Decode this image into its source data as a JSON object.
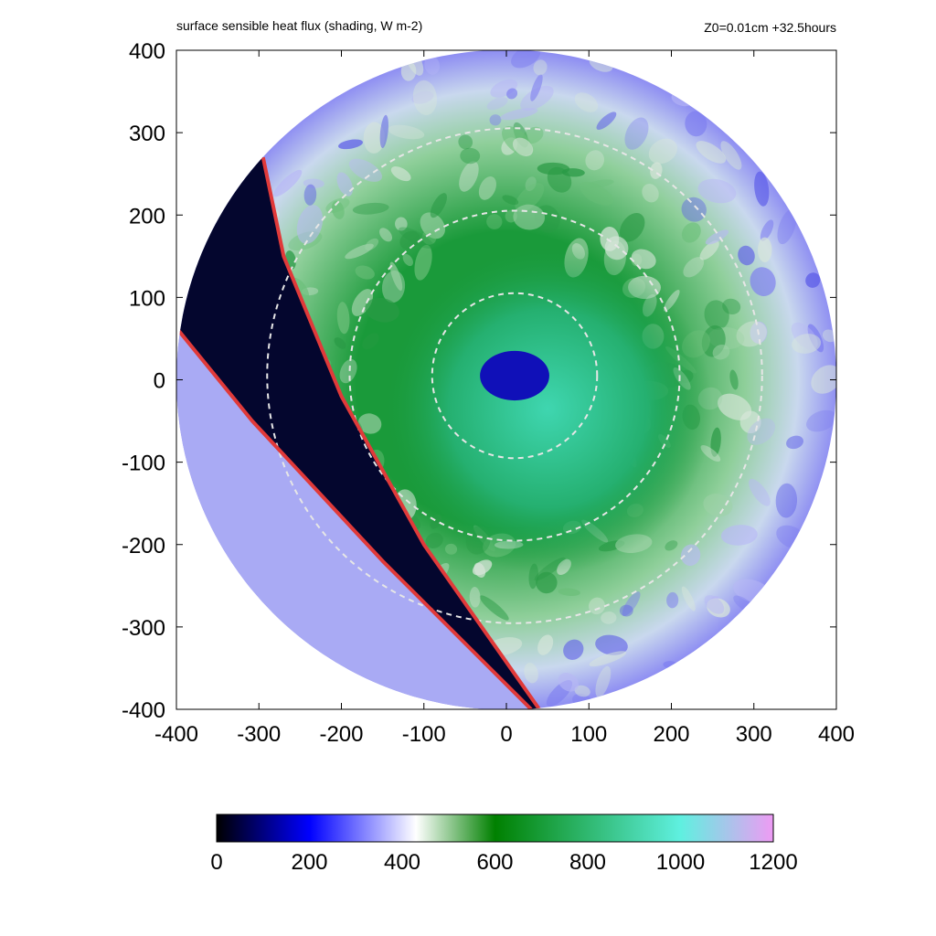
{
  "title": "surface sensible heat flux (shading, W m-2)",
  "run_label": "Z0=0.01cm  +32.5hours",
  "colors": {
    "plot_background": "#ffffff",
    "front_line": "#e03a3a",
    "dashed_circles": "#e6e6e6",
    "colormap": [
      "#000000",
      "#0000ff",
      "#ffffff",
      "#008000",
      "#5ff0e0",
      "#ee9bf4"
    ]
  },
  "chart_data": {
    "type": "heatmap",
    "xlim": [
      -400,
      400
    ],
    "ylim": [
      -400,
      400
    ],
    "x_ticks": [
      -400,
      -300,
      -200,
      -100,
      0,
      100,
      200,
      300,
      400
    ],
    "y_ticks": [
      -400,
      -300,
      -200,
      -100,
      0,
      100,
      200,
      300,
      400
    ],
    "domain_radius": 400,
    "eye_center": [
      10,
      5
    ],
    "dashed_circle_radii": [
      100,
      200,
      300
    ],
    "front_lines": [
      [
        [
          -400,
          63
        ],
        [
          -308,
          -50
        ],
        [
          -150,
          -220
        ],
        [
          30,
          -400
        ]
      ],
      [
        [
          -295,
          270
        ],
        [
          -270,
          150
        ],
        [
          -200,
          -20
        ],
        [
          -100,
          -200
        ],
        [
          40,
          -400
        ]
      ]
    ],
    "colorbar": {
      "min": 0,
      "max": 1200,
      "ticks": [
        0,
        200,
        400,
        600,
        800,
        1000,
        1200
      ],
      "stops": [
        {
          "value": 0,
          "color": "#000000"
        },
        {
          "value": 200,
          "color": "#0000ff"
        },
        {
          "value": 430,
          "color": "#ffffff"
        },
        {
          "value": 600,
          "color": "#008000"
        },
        {
          "value": 1000,
          "color": "#5ff0e0"
        },
        {
          "value": 1200,
          "color": "#ee9bf4"
        }
      ]
    }
  }
}
